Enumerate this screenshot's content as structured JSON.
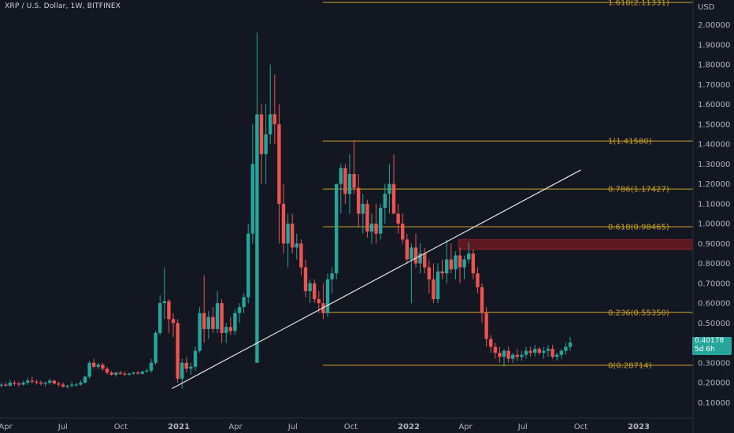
{
  "header": {
    "title": "XRP / U.S. Dollar, 1W, BITFINEX",
    "currency": "USD"
  },
  "colors": {
    "background": "#131722",
    "up": "#26a69a",
    "down": "#ef5350",
    "fib": "#c9a227",
    "trendline": "#e6e6e6",
    "zone": "#6b1a20"
  },
  "last_price": {
    "value": "0.40178",
    "countdown": "5d 6h"
  },
  "chart_data": {
    "type": "candlestick",
    "title": "XRP / U.S. Dollar, 1W, BITFINEX",
    "y_axis": {
      "unit": "USD",
      "ticks": [
        "2.00000",
        "1.90000",
        "1.80000",
        "1.70000",
        "1.60000",
        "1.50000",
        "1.40000",
        "1.30000",
        "1.20000",
        "1.10000",
        "1.00000",
        "0.90000",
        "0.80000",
        "0.70000",
        "0.60000",
        "0.50000",
        "0.40000",
        "0.30000",
        "0.20000",
        "0.10000"
      ],
      "tick_values": [
        2.0,
        1.9,
        1.8,
        1.7,
        1.6,
        1.5,
        1.4,
        1.3,
        1.2,
        1.1,
        1.0,
        0.9,
        0.8,
        0.7,
        0.6,
        0.5,
        0.4,
        0.3,
        0.2,
        0.1
      ],
      "range": [
        0.05,
        2.2
      ]
    },
    "x_axis": {
      "labels": [
        {
          "text": "Apr",
          "date": "2020-04-01",
          "bold": false
        },
        {
          "text": "Jul",
          "date": "2020-07-01",
          "bold": false
        },
        {
          "text": "Oct",
          "date": "2020-10-01",
          "bold": false
        },
        {
          "text": "2021",
          "date": "2021-01-01",
          "bold": true
        },
        {
          "text": "Apr",
          "date": "2021-04-01",
          "bold": false
        },
        {
          "text": "Jul",
          "date": "2021-07-01",
          "bold": false
        },
        {
          "text": "Oct",
          "date": "2021-10-01",
          "bold": false
        },
        {
          "text": "2022",
          "date": "2022-01-01",
          "bold": true
        },
        {
          "text": "Apr",
          "date": "2022-04-01",
          "bold": false
        },
        {
          "text": "Jul",
          "date": "2022-07-01",
          "bold": false
        },
        {
          "text": "Oct",
          "date": "2022-10-01",
          "bold": false
        },
        {
          "text": "2023",
          "date": "2023-01-01",
          "bold": true
        }
      ]
    },
    "series": [
      {
        "type": "candlestick",
        "interval": "1W",
        "ohlc_weekly": [
          [
            0.175,
            0.19,
            0.17,
            0.185
          ],
          [
            0.185,
            0.2,
            0.175,
            0.19
          ],
          [
            0.19,
            0.2,
            0.18,
            0.185
          ],
          [
            0.185,
            0.215,
            0.18,
            0.2
          ],
          [
            0.2,
            0.21,
            0.185,
            0.195
          ],
          [
            0.195,
            0.205,
            0.18,
            0.19
          ],
          [
            0.19,
            0.21,
            0.185,
            0.2
          ],
          [
            0.2,
            0.225,
            0.19,
            0.21
          ],
          [
            0.21,
            0.23,
            0.195,
            0.205
          ],
          [
            0.205,
            0.215,
            0.19,
            0.2
          ],
          [
            0.2,
            0.21,
            0.185,
            0.195
          ],
          [
            0.195,
            0.205,
            0.18,
            0.2
          ],
          [
            0.2,
            0.22,
            0.19,
            0.21
          ],
          [
            0.21,
            0.215,
            0.19,
            0.195
          ],
          [
            0.195,
            0.205,
            0.18,
            0.19
          ],
          [
            0.19,
            0.2,
            0.175,
            0.18
          ],
          [
            0.18,
            0.19,
            0.17,
            0.185
          ],
          [
            0.185,
            0.205,
            0.175,
            0.19
          ],
          [
            0.19,
            0.2,
            0.18,
            0.19
          ],
          [
            0.19,
            0.21,
            0.185,
            0.2
          ],
          [
            0.2,
            0.235,
            0.195,
            0.23
          ],
          [
            0.23,
            0.31,
            0.22,
            0.3
          ],
          [
            0.3,
            0.32,
            0.27,
            0.28
          ],
          [
            0.28,
            0.3,
            0.27,
            0.29
          ],
          [
            0.29,
            0.3,
            0.26,
            0.27
          ],
          [
            0.27,
            0.28,
            0.24,
            0.25
          ],
          [
            0.25,
            0.26,
            0.235,
            0.24
          ],
          [
            0.24,
            0.255,
            0.23,
            0.25
          ],
          [
            0.25,
            0.26,
            0.24,
            0.245
          ],
          [
            0.245,
            0.255,
            0.235,
            0.24
          ],
          [
            0.24,
            0.25,
            0.235,
            0.245
          ],
          [
            0.245,
            0.255,
            0.24,
            0.25
          ],
          [
            0.25,
            0.26,
            0.24,
            0.245
          ],
          [
            0.245,
            0.26,
            0.24,
            0.255
          ],
          [
            0.255,
            0.27,
            0.25,
            0.26
          ],
          [
            0.26,
            0.32,
            0.25,
            0.3
          ],
          [
            0.3,
            0.46,
            0.29,
            0.45
          ],
          [
            0.45,
            0.64,
            0.44,
            0.6
          ],
          [
            0.6,
            0.78,
            0.52,
            0.61
          ],
          [
            0.61,
            0.62,
            0.45,
            0.52
          ],
          [
            0.52,
            0.55,
            0.43,
            0.5
          ],
          [
            0.5,
            0.52,
            0.2,
            0.22
          ],
          [
            0.22,
            0.32,
            0.17,
            0.3
          ],
          [
            0.3,
            0.33,
            0.25,
            0.27
          ],
          [
            0.27,
            0.3,
            0.24,
            0.28
          ],
          [
            0.28,
            0.38,
            0.26,
            0.36
          ],
          [
            0.36,
            0.58,
            0.35,
            0.55
          ],
          [
            0.55,
            0.74,
            0.4,
            0.47
          ],
          [
            0.47,
            0.56,
            0.42,
            0.53
          ],
          [
            0.53,
            0.58,
            0.45,
            0.47
          ],
          [
            0.47,
            0.66,
            0.45,
            0.6
          ],
          [
            0.6,
            0.62,
            0.4,
            0.45
          ],
          [
            0.45,
            0.5,
            0.4,
            0.48
          ],
          [
            0.48,
            0.53,
            0.44,
            0.46
          ],
          [
            0.46,
            0.57,
            0.44,
            0.55
          ],
          [
            0.55,
            0.6,
            0.5,
            0.58
          ],
          [
            0.58,
            0.65,
            0.55,
            0.63
          ],
          [
            0.63,
            1.0,
            0.6,
            0.95
          ],
          [
            0.95,
            1.5,
            0.9,
            1.3
          ],
          [
            0.3,
            1.96,
            1.2,
            1.55
          ],
          [
            1.55,
            1.6,
            1.2,
            1.35
          ],
          [
            1.35,
            1.6,
            1.2,
            1.45
          ],
          [
            1.45,
            1.8,
            1.4,
            1.55
          ],
          [
            1.55,
            1.75,
            1.4,
            1.5
          ],
          [
            1.5,
            1.6,
            0.9,
            1.1
          ],
          [
            1.1,
            1.2,
            0.85,
            0.9
          ],
          [
            0.9,
            1.05,
            0.78,
            1.0
          ],
          [
            1.0,
            1.05,
            0.85,
            0.88
          ],
          [
            0.88,
            0.95,
            0.82,
            0.9
          ],
          [
            0.9,
            0.92,
            0.74,
            0.78
          ],
          [
            0.78,
            0.82,
            0.63,
            0.66
          ],
          [
            0.66,
            0.72,
            0.6,
            0.7
          ],
          [
            0.7,
            0.72,
            0.6,
            0.62
          ],
          [
            0.62,
            0.66,
            0.55,
            0.6
          ],
          [
            0.6,
            0.7,
            0.52,
            0.55
          ],
          [
            0.55,
            0.75,
            0.53,
            0.72
          ],
          [
            0.72,
            0.78,
            0.65,
            0.75
          ],
          [
            0.75,
            1.05,
            0.72,
            1.2
          ],
          [
            1.2,
            1.3,
            1.05,
            1.28
          ],
          [
            1.28,
            1.3,
            1.1,
            1.15
          ],
          [
            1.15,
            1.35,
            1.05,
            1.25
          ],
          [
            1.25,
            1.42,
            1.15,
            1.18
          ],
          [
            1.18,
            1.25,
            0.98,
            1.05
          ],
          [
            1.05,
            1.15,
            0.95,
            1.1
          ],
          [
            1.1,
            1.12,
            0.93,
            0.96
          ],
          [
            0.96,
            1.05,
            0.9,
            1.0
          ],
          [
            1.0,
            1.1,
            0.9,
            0.95
          ],
          [
            0.95,
            1.1,
            0.92,
            1.08
          ],
          [
            1.08,
            1.2,
            1.0,
            1.15
          ],
          [
            1.15,
            1.3,
            1.05,
            1.2
          ],
          [
            1.2,
            1.35,
            1.1,
            1.05
          ],
          [
            1.05,
            1.1,
            0.95,
            1.0
          ],
          [
            1.0,
            1.05,
            0.9,
            0.92
          ],
          [
            0.92,
            0.95,
            0.8,
            0.82
          ],
          [
            0.82,
            0.9,
            0.6,
            0.88
          ],
          [
            0.88,
            0.95,
            0.78,
            0.8
          ],
          [
            0.8,
            0.9,
            0.75,
            0.85
          ],
          [
            0.85,
            0.88,
            0.75,
            0.78
          ],
          [
            0.78,
            0.82,
            0.65,
            0.72
          ],
          [
            0.72,
            0.8,
            0.6,
            0.62
          ],
          [
            0.62,
            0.8,
            0.6,
            0.76
          ],
          [
            0.76,
            0.82,
            0.72,
            0.75
          ],
          [
            0.75,
            0.92,
            0.7,
            0.82
          ],
          [
            0.82,
            0.9,
            0.75,
            0.77
          ],
          [
            0.77,
            0.86,
            0.72,
            0.84
          ],
          [
            0.84,
            0.88,
            0.7,
            0.78
          ],
          [
            0.78,
            0.84,
            0.72,
            0.82
          ],
          [
            0.82,
            0.91,
            0.8,
            0.85
          ],
          [
            0.85,
            0.87,
            0.72,
            0.75
          ],
          [
            0.75,
            0.78,
            0.65,
            0.68
          ],
          [
            0.68,
            0.7,
            0.5,
            0.55
          ],
          [
            0.55,
            0.58,
            0.38,
            0.42
          ],
          [
            0.42,
            0.44,
            0.35,
            0.38
          ],
          [
            0.38,
            0.4,
            0.32,
            0.35
          ],
          [
            0.35,
            0.38,
            0.3,
            0.33
          ],
          [
            0.33,
            0.37,
            0.28,
            0.36
          ],
          [
            0.36,
            0.38,
            0.3,
            0.32
          ],
          [
            0.32,
            0.35,
            0.3,
            0.34
          ],
          [
            0.34,
            0.37,
            0.31,
            0.33
          ],
          [
            0.33,
            0.36,
            0.31,
            0.34
          ],
          [
            0.34,
            0.38,
            0.32,
            0.36
          ],
          [
            0.36,
            0.38,
            0.33,
            0.35
          ],
          [
            0.35,
            0.39,
            0.33,
            0.37
          ],
          [
            0.37,
            0.38,
            0.34,
            0.35
          ],
          [
            0.35,
            0.38,
            0.32,
            0.36
          ],
          [
            0.36,
            0.39,
            0.33,
            0.37
          ],
          [
            0.37,
            0.39,
            0.32,
            0.33
          ],
          [
            0.33,
            0.35,
            0.31,
            0.34
          ],
          [
            0.34,
            0.37,
            0.32,
            0.36
          ],
          [
            0.36,
            0.4,
            0.34,
            0.38
          ],
          [
            0.38,
            0.43,
            0.36,
            0.40178
          ]
        ]
      }
    ],
    "fibonacci": [
      {
        "label": "1.618(2.11331)",
        "value": 2.11331
      },
      {
        "label": "1(1.41580)",
        "value": 1.4158
      },
      {
        "label": "0.786(1.17427)",
        "value": 1.17427
      },
      {
        "label": "0.618(0.98465)",
        "value": 0.98465
      },
      {
        "label": "0.236(0.55350)",
        "value": 0.5535
      },
      {
        "label": "0(0.28714)",
        "value": 0.28714
      }
    ],
    "trendline": {
      "from": {
        "date": "2020-12-21",
        "price": 0.17
      },
      "to": {
        "date": "2022-10-01",
        "price": 1.27
      }
    },
    "resistance_zone": {
      "from_date": "2022-03-21",
      "price_low": 0.87,
      "price_high": 0.92
    },
    "legend": "none",
    "grid": false
  }
}
